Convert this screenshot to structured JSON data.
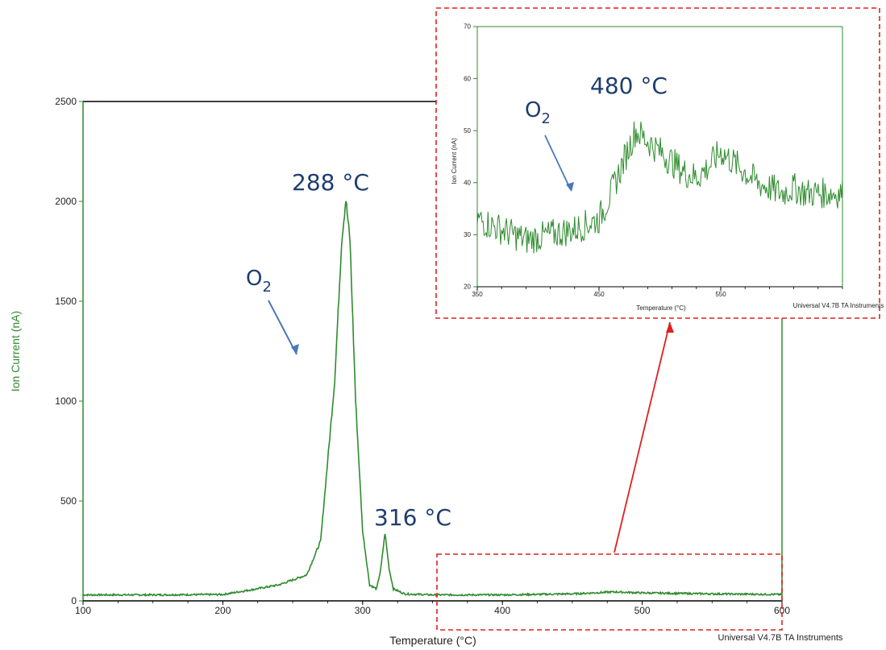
{
  "colors": {
    "series": "#2e8b2e",
    "annotation": "#1f3e6e",
    "arrow_blue": "#4a78b8",
    "highlight": "#e02020",
    "axis": "#000000"
  },
  "chart_data": [
    {
      "type": "line",
      "xlabel": "Temperature (°C)",
      "ylabel": "Ion Current (nA)",
      "xlim": [
        100,
        600
      ],
      "ylim": [
        0,
        2500
      ],
      "xticks": [
        "100",
        "200",
        "300",
        "400",
        "500",
        "600"
      ],
      "yticks": [
        "0",
        "500",
        "1000",
        "1500",
        "2000",
        "2500"
      ],
      "footer": "Universal V4.7B TA Instruments",
      "series": [
        {
          "x": [
            100,
            150,
            200,
            220,
            240,
            260,
            270,
            280,
            285,
            288,
            291,
            295,
            300,
            305,
            310,
            313,
            316,
            319,
            322,
            330,
            350,
            400,
            450,
            480,
            500,
            550,
            600
          ],
          "y": [
            30,
            30,
            32,
            55,
            80,
            130,
            300,
            1100,
            1800,
            2010,
            1800,
            1000,
            350,
            80,
            60,
            160,
            340,
            160,
            60,
            35,
            30,
            30,
            35,
            45,
            40,
            35,
            32
          ]
        }
      ],
      "annotations": [
        {
          "text": "288 °C",
          "x": 288,
          "y": 2010
        },
        {
          "text": "316 °C",
          "x": 316,
          "y": 340
        },
        {
          "text": "O",
          "sub": "2"
        }
      ]
    },
    {
      "type": "line",
      "xlabel": "Temperature (°C)",
      "ylabel": "Ion Current (nA)",
      "xlim": [
        350,
        650
      ],
      "ylim": [
        20,
        70
      ],
      "xticks": [
        "350",
        "450",
        "550"
      ],
      "yticks": [
        "20",
        "30",
        "40",
        "50",
        "60",
        "70"
      ],
      "footer": "Universal V4.7B TA Instruments",
      "series": [
        {
          "x": [
            350,
            370,
            390,
            410,
            430,
            450,
            460,
            470,
            480,
            490,
            500,
            510,
            520,
            530,
            540,
            550,
            560,
            570,
            580,
            590,
            600,
            610,
            620,
            630,
            640,
            650
          ],
          "y": [
            33,
            31,
            29,
            30,
            31,
            33,
            38,
            44,
            50,
            48,
            46,
            44,
            42,
            41,
            43,
            46,
            44,
            42,
            40,
            39,
            38,
            39,
            38,
            38,
            38,
            38
          ]
        }
      ],
      "annotations": [
        {
          "text": "480 °C",
          "x": 480,
          "y": 52
        },
        {
          "text": "O",
          "sub": "2"
        }
      ]
    }
  ]
}
